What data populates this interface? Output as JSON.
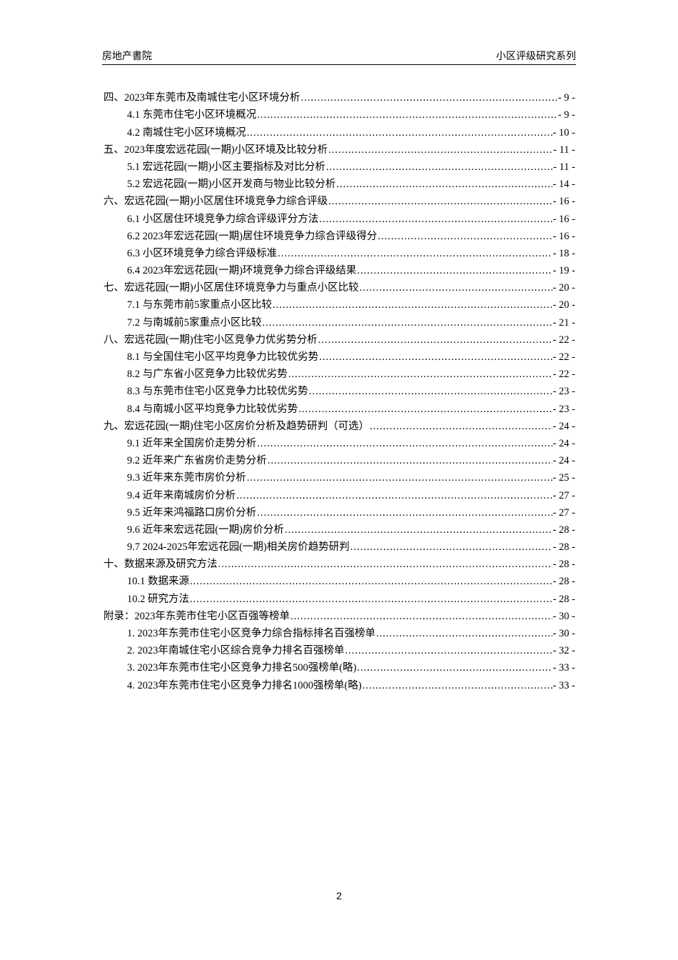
{
  "header": {
    "left": "房地产書院",
    "right": "小区评级研究系列"
  },
  "toc": [
    {
      "level": 1,
      "title": "四、2023年东莞市及南城住宅小区环境分析",
      "page": "- 9 -"
    },
    {
      "level": 2,
      "title": "4.1 东莞市住宅小区环境概况",
      "page": "- 9 -"
    },
    {
      "level": 2,
      "title": "4.2 南城住宅小区环境概况",
      "page": "- 10 -"
    },
    {
      "level": 1,
      "title": "五、2023年度宏远花园(一期)小区环境及比较分析",
      "page": "- 11 -"
    },
    {
      "level": 2,
      "title": "5.1 宏远花园(一期)小区主要指标及对比分析",
      "page": "- 11 -"
    },
    {
      "level": 2,
      "title": "5.2 宏远花园(一期)小区开发商与物业比较分析",
      "page": "- 14 -"
    },
    {
      "level": 1,
      "title": "六、宏远花园(一期)小区居住环境竞争力综合评级",
      "page": "- 16 -"
    },
    {
      "level": 2,
      "title": "6.1 小区居住环境竞争力综合评级评分方法",
      "page": "- 16 -"
    },
    {
      "level": 2,
      "title": "6.2 2023年宏远花园(一期)居住环境竞争力综合评级得分",
      "page": "- 16 -"
    },
    {
      "level": 2,
      "title": "6.3 小区环境竞争力综合评级标准",
      "page": "- 18 -"
    },
    {
      "level": 2,
      "title": "6.4 2023年宏远花园(一期)环境竞争力综合评级结果",
      "page": "- 19 -"
    },
    {
      "level": 1,
      "title": "七、宏远花园(一期)小区居住环境竞争力与重点小区比较",
      "page": "- 20 -"
    },
    {
      "level": 2,
      "title": "7.1 与东莞市前5家重点小区比较",
      "page": "- 20 -"
    },
    {
      "level": 2,
      "title": "7.2 与南城前5家重点小区比较",
      "page": "- 21 -"
    },
    {
      "level": 1,
      "title": "八、宏远花园(一期)住宅小区竞争力优劣势分析",
      "page": "- 22 -"
    },
    {
      "level": 2,
      "title": "8.1 与全国住宅小区平均竞争力比较优劣势",
      "page": "- 22 -"
    },
    {
      "level": 2,
      "title": "8.2 与广东省小区竞争力比较优劣势",
      "page": "- 22 -"
    },
    {
      "level": 2,
      "title": "8.3 与东莞市住宅小区竞争力比较优劣势",
      "page": "- 23 -"
    },
    {
      "level": 2,
      "title": "8.4 与南城小区平均竞争力比较优劣势",
      "page": "- 23 -"
    },
    {
      "level": 1,
      "title": "九、宏远花园(一期)住宅小区房价分析及趋势研判（可选）",
      "page": "- 24 -"
    },
    {
      "level": 2,
      "title": "9.1 近年来全国房价走势分析",
      "page": "- 24 -"
    },
    {
      "level": 2,
      "title": "9.2 近年来广东省房价走势分析",
      "page": "- 24 -"
    },
    {
      "level": 2,
      "title": "9.3 近年来东莞市房价分析",
      "page": "- 25 -"
    },
    {
      "level": 2,
      "title": "9.4 近年来南城房价分析",
      "page": "- 27 -"
    },
    {
      "level": 2,
      "title": "9.5 近年来鸿福路口房价分析",
      "page": "- 27 -"
    },
    {
      "level": 2,
      "title": "9.6 近年来宏远花园(一期)房价分析",
      "page": "- 28 -"
    },
    {
      "level": 2,
      "title": "9.7 2024-2025年宏远花园(一期)相关房价趋势研判",
      "page": "- 28 -"
    },
    {
      "level": 1,
      "title": "十、数据来源及研究方法",
      "page": "- 28 -"
    },
    {
      "level": 2,
      "title": "10.1 数据来源",
      "page": "- 28 -"
    },
    {
      "level": 2,
      "title": "10.2 研究方法",
      "page": "- 28 -"
    },
    {
      "level": 1,
      "title": "附录：2023年东莞市住宅小区百强等榜单",
      "page": "- 30 -"
    },
    {
      "level": 2,
      "title": "1.  2023年东莞市住宅小区竞争力综合指标排名百强榜单",
      "page": "- 30 -"
    },
    {
      "level": 2,
      "title": "2.  2023年南城住宅小区综合竞争力排名百强榜单",
      "page": "- 32 -"
    },
    {
      "level": 2,
      "title": "3.  2023年东莞市住宅小区竞争力排名500强榜单(略)",
      "page": "- 33 -"
    },
    {
      "level": 2,
      "title": "4.  2023年东莞市住宅小区竞争力排名1000强榜单(略)",
      "page": "- 33 -"
    }
  ],
  "page_number": "2"
}
